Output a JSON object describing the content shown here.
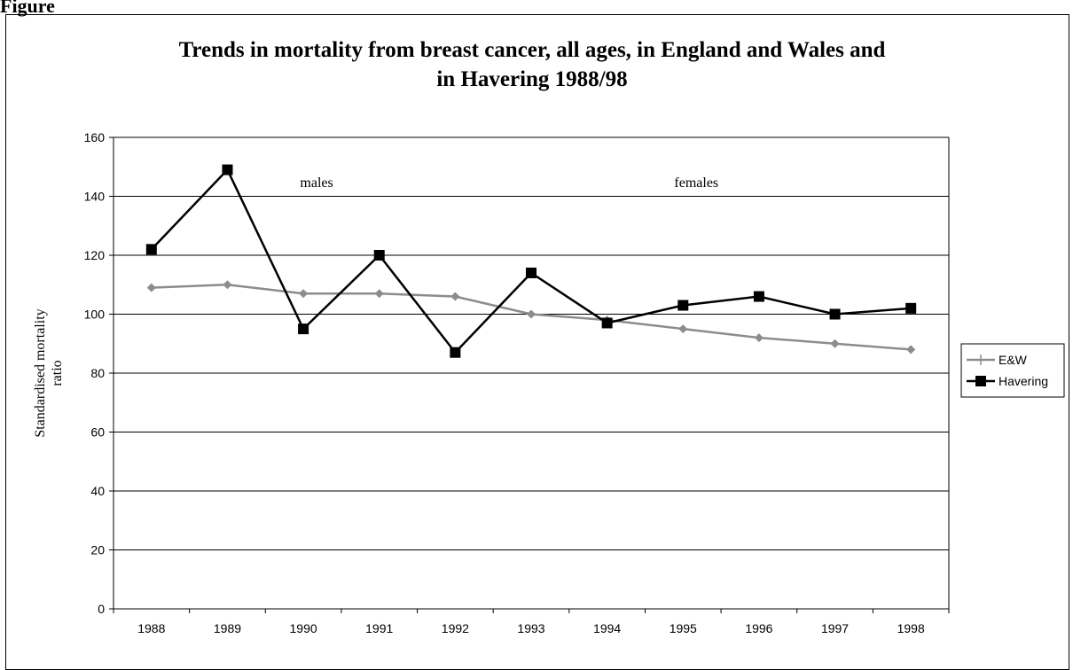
{
  "figure_label": "Figure",
  "chart_data": {
    "type": "line",
    "title": "Trends in mortality from breast cancer, all ages, in England and Wales and in Havering 1988/98",
    "title_lines": [
      "Trends in mortality from breast cancer, all ages, in England and Wales and",
      "in Havering 1988/98"
    ],
    "xlabel": "",
    "ylabel_lines": [
      "Standardised mortality",
      "ratio"
    ],
    "categories": [
      "1988",
      "1989",
      "1990",
      "1991",
      "1992",
      "1993",
      "1994",
      "1995",
      "1996",
      "1997",
      "1998"
    ],
    "ylim": [
      0,
      160
    ],
    "yticks": [
      0,
      20,
      40,
      60,
      80,
      100,
      120,
      140,
      160
    ],
    "grid": true,
    "legend_position": "right",
    "annotations": [
      {
        "text": "males",
        "x": "1990",
        "y": 145
      },
      {
        "text": "females",
        "x": "1995",
        "y": 145
      }
    ],
    "series": [
      {
        "name": "E&W",
        "color": "#8c8c8c",
        "marker": "diamond",
        "values": [
          109,
          110,
          107,
          107,
          106,
          100,
          98,
          95,
          92,
          90,
          88
        ]
      },
      {
        "name": "Havering",
        "color": "#000000",
        "marker": "square",
        "values": [
          122,
          149,
          95,
          120,
          87,
          114,
          97,
          103,
          106,
          100,
          102
        ]
      }
    ]
  }
}
